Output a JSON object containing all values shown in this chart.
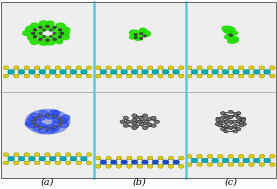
{
  "figsize": [
    2.77,
    1.89
  ],
  "dpi": 100,
  "background_color": "#ffffff",
  "label_fontsize": 7,
  "labels": [
    "(a)",
    "(b)",
    "(c)"
  ],
  "col_bounds": [
    0.005,
    0.338,
    0.671,
    0.995
  ],
  "row_bounds": [
    0.06,
    0.515,
    0.99
  ],
  "divider_color": "#55ccdd",
  "panel_bg": "#f0f0f0",
  "green_blob": "#22dd00",
  "blue_blob": "#2244ee",
  "s_color": "#ddcc00",
  "mo_color": "#00aaaa",
  "mo_blue_color": "#2244bb",
  "c60_color": "#777777",
  "c60_ec": "#333333"
}
